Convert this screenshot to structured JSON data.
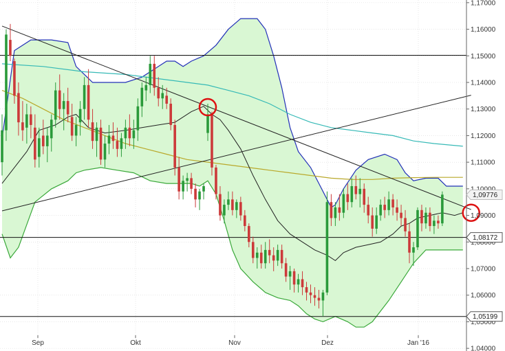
{
  "colors": {
    "background": "#ffffff",
    "band_fill": "#d9f7d3",
    "upper_band": "#2230b8",
    "lower_band": "#3aa83a",
    "middle_band": "#222222",
    "ma_cyan": "#35b9b6",
    "ma_olive": "#b9a82a",
    "candle_up": "#2a9a3a",
    "candle_down": "#cc3a3a",
    "trendline": "#222222",
    "horizontal_level": "#111111",
    "marker_circle": "#dd1111",
    "grid": "#d8d8d8"
  },
  "chart_data": {
    "type": "candlestick",
    "instrument_hint": "daily candlestick chart with Bollinger Bands",
    "x_ticks": [
      "Sep",
      "Okt",
      "Nov",
      "Dez",
      "Jan '16"
    ],
    "y_ticks": [
      "1,17000",
      "1,16000",
      "1,15000",
      "1,14000",
      "1,13000",
      "1,12000",
      "1,11000",
      "1,10000",
      "1,09000",
      "1,08000",
      "1,07000",
      "1,06000",
      "1,05000",
      "1,04000"
    ],
    "y_tick_values": [
      1.17,
      1.16,
      1.15,
      1.14,
      1.13,
      1.12,
      1.11,
      1.1,
      1.09,
      1.08,
      1.07,
      1.06,
      1.05,
      1.04
    ],
    "ylim": [
      1.039,
      1.171
    ],
    "grid": true,
    "price_tags": [
      {
        "label": "1,09776",
        "value": 1.09776,
        "style": "current"
      },
      {
        "label": "1,08172",
        "value": 1.08172,
        "style": "level"
      },
      {
        "label": "1,05199",
        "value": 1.05199,
        "style": "level"
      }
    ],
    "horizontal_levels": [
      1.1502,
      1.08172,
      1.05199
    ],
    "trendlines": [
      {
        "from": [
          0,
          1.1612
        ],
        "to": [
          114,
          1.0922
        ]
      },
      {
        "from": [
          0,
          1.0917
        ],
        "to": [
          114,
          1.1352
        ]
      }
    ],
    "markers": [
      {
        "x": 50,
        "y": 1.1307
      },
      {
        "x": 114,
        "y": 1.091
      }
    ],
    "candles": [
      [
        1.11,
        1.128,
        1.105,
        1.122
      ],
      [
        1.122,
        1.16,
        1.118,
        1.158
      ],
      [
        1.156,
        1.162,
        1.148,
        1.15
      ],
      [
        1.148,
        1.149,
        1.132,
        1.135
      ],
      [
        1.136,
        1.14,
        1.12,
        1.125
      ],
      [
        1.125,
        1.133,
        1.118,
        1.122
      ],
      [
        1.123,
        1.132,
        1.117,
        1.128
      ],
      [
        1.128,
        1.131,
        1.119,
        1.124
      ],
      [
        1.123,
        1.128,
        1.108,
        1.111
      ],
      [
        1.112,
        1.123,
        1.108,
        1.119
      ],
      [
        1.12,
        1.126,
        1.113,
        1.116
      ],
      [
        1.116,
        1.123,
        1.11,
        1.12
      ],
      [
        1.119,
        1.128,
        1.114,
        1.126
      ],
      [
        1.126,
        1.14,
        1.123,
        1.137
      ],
      [
        1.137,
        1.143,
        1.126,
        1.13
      ],
      [
        1.13,
        1.136,
        1.122,
        1.133
      ],
      [
        1.133,
        1.138,
        1.125,
        1.128
      ],
      [
        1.127,
        1.132,
        1.118,
        1.12
      ],
      [
        1.12,
        1.127,
        1.116,
        1.124
      ],
      [
        1.125,
        1.133,
        1.12,
        1.13
      ],
      [
        1.13,
        1.142,
        1.126,
        1.139
      ],
      [
        1.139,
        1.145,
        1.123,
        1.126
      ],
      [
        1.125,
        1.13,
        1.115,
        1.118
      ],
      [
        1.118,
        1.125,
        1.112,
        1.123
      ],
      [
        1.123,
        1.126,
        1.109,
        1.111
      ],
      [
        1.111,
        1.12,
        1.108,
        1.117
      ],
      [
        1.117,
        1.124,
        1.113,
        1.12
      ],
      [
        1.12,
        1.125,
        1.115,
        1.118
      ],
      [
        1.118,
        1.123,
        1.112,
        1.115
      ],
      [
        1.115,
        1.121,
        1.112,
        1.119
      ],
      [
        1.119,
        1.126,
        1.115,
        1.123
      ],
      [
        1.123,
        1.128,
        1.116,
        1.119
      ],
      [
        1.119,
        1.126,
        1.115,
        1.122
      ],
      [
        1.122,
        1.134,
        1.118,
        1.131
      ],
      [
        1.131,
        1.14,
        1.127,
        1.138
      ],
      [
        1.137,
        1.142,
        1.133,
        1.139
      ],
      [
        1.139,
        1.15,
        1.136,
        1.147
      ],
      [
        1.147,
        1.15,
        1.135,
        1.138
      ],
      [
        1.138,
        1.142,
        1.131,
        1.134
      ],
      [
        1.134,
        1.139,
        1.13,
        1.136
      ],
      [
        1.135,
        1.138,
        1.13,
        1.132
      ],
      [
        1.132,
        1.134,
        1.122,
        1.124
      ],
      [
        1.124,
        1.126,
        1.105,
        1.108
      ],
      [
        1.108,
        1.112,
        1.096,
        1.099
      ],
      [
        1.099,
        1.105,
        1.096,
        1.103
      ],
      [
        1.103,
        1.106,
        1.099,
        1.104
      ],
      [
        1.104,
        1.106,
        1.098,
        1.1
      ],
      [
        1.1,
        1.102,
        1.093,
        1.096
      ],
      [
        1.096,
        1.1,
        1.092,
        1.099
      ],
      [
        1.099,
        1.102,
        1.096,
        1.101
      ],
      [
        1.121,
        1.132,
        1.118,
        1.128
      ],
      [
        1.128,
        1.129,
        1.105,
        1.108
      ],
      [
        1.108,
        1.109,
        1.096,
        1.098
      ],
      [
        1.098,
        1.101,
        1.088,
        1.09
      ],
      [
        1.09,
        1.096,
        1.087,
        1.094
      ],
      [
        1.094,
        1.099,
        1.092,
        1.096
      ],
      [
        1.096,
        1.099,
        1.09,
        1.092
      ],
      [
        1.092,
        1.096,
        1.089,
        1.095
      ],
      [
        1.095,
        1.097,
        1.088,
        1.09
      ],
      [
        1.09,
        1.092,
        1.084,
        1.086
      ],
      [
        1.086,
        1.087,
        1.078,
        1.08
      ],
      [
        1.08,
        1.082,
        1.072,
        1.074
      ],
      [
        1.074,
        1.078,
        1.07,
        1.076
      ],
      [
        1.076,
        1.079,
        1.07,
        1.072
      ],
      [
        1.072,
        1.08,
        1.07,
        1.077
      ],
      [
        1.077,
        1.081,
        1.072,
        1.075
      ],
      [
        1.075,
        1.078,
        1.069,
        1.073
      ],
      [
        1.073,
        1.079,
        1.071,
        1.077
      ],
      [
        1.077,
        1.079,
        1.07,
        1.072
      ],
      [
        1.072,
        1.074,
        1.065,
        1.067
      ],
      [
        1.067,
        1.071,
        1.062,
        1.069
      ],
      [
        1.069,
        1.07,
        1.061,
        1.064
      ],
      [
        1.064,
        1.068,
        1.061,
        1.066
      ],
      [
        1.066,
        1.069,
        1.06,
        1.063
      ],
      [
        1.063,
        1.065,
        1.058,
        1.061
      ],
      [
        1.061,
        1.064,
        1.057,
        1.06
      ],
      [
        1.06,
        1.063,
        1.056,
        1.059
      ],
      [
        1.059,
        1.062,
        1.055,
        1.058
      ],
      [
        1.058,
        1.062,
        1.052,
        1.061
      ],
      [
        1.061,
        1.099,
        1.06,
        1.095
      ],
      [
        1.095,
        1.098,
        1.086,
        1.089
      ],
      [
        1.089,
        1.095,
        1.086,
        1.093
      ],
      [
        1.093,
        1.098,
        1.088,
        1.091
      ],
      [
        1.091,
        1.1,
        1.089,
        1.098
      ],
      [
        1.098,
        1.102,
        1.092,
        1.095
      ],
      [
        1.095,
        1.104,
        1.093,
        1.101
      ],
      [
        1.101,
        1.105,
        1.096,
        1.098
      ],
      [
        1.098,
        1.104,
        1.093,
        1.1
      ],
      [
        1.1,
        1.102,
        1.091,
        1.094
      ],
      [
        1.094,
        1.097,
        1.087,
        1.09
      ],
      [
        1.09,
        1.093,
        1.082,
        1.085
      ],
      [
        1.085,
        1.093,
        1.083,
        1.09
      ],
      [
        1.09,
        1.096,
        1.088,
        1.094
      ],
      [
        1.094,
        1.097,
        1.089,
        1.092
      ],
      [
        1.092,
        1.099,
        1.09,
        1.096
      ],
      [
        1.096,
        1.098,
        1.09,
        1.093
      ],
      [
        1.093,
        1.096,
        1.088,
        1.091
      ],
      [
        1.091,
        1.094,
        1.086,
        1.089
      ],
      [
        1.089,
        1.092,
        1.082,
        1.084
      ],
      [
        1.084,
        1.087,
        1.072,
        1.076
      ],
      [
        1.076,
        1.08,
        1.071,
        1.078
      ],
      [
        1.078,
        1.093,
        1.077,
        1.092
      ],
      [
        1.092,
        1.094,
        1.084,
        1.087
      ],
      [
        1.087,
        1.093,
        1.085,
        1.091
      ],
      [
        1.091,
        1.093,
        1.084,
        1.086
      ],
      [
        1.086,
        1.09,
        1.083,
        1.088
      ],
      [
        1.088,
        1.09,
        1.085,
        1.087
      ],
      [
        1.087,
        1.099,
        1.086,
        1.0978
      ]
    ],
    "upper_band": [
      [
        0,
        1.119
      ],
      [
        3,
        1.152
      ],
      [
        7,
        1.156
      ],
      [
        12,
        1.156
      ],
      [
        16,
        1.155
      ],
      [
        18,
        1.146
      ],
      [
        22,
        1.14
      ],
      [
        30,
        1.14
      ],
      [
        34,
        1.142
      ],
      [
        38,
        1.146
      ],
      [
        40,
        1.148
      ],
      [
        42,
        1.148
      ],
      [
        44,
        1.146
      ],
      [
        46,
        1.148
      ],
      [
        49,
        1.15
      ],
      [
        52,
        1.154
      ],
      [
        55,
        1.16
      ],
      [
        58,
        1.164
      ],
      [
        62,
        1.164
      ],
      [
        64,
        1.16
      ],
      [
        66,
        1.15
      ],
      [
        68,
        1.138
      ],
      [
        70,
        1.123
      ],
      [
        72,
        1.114
      ],
      [
        75,
        1.108
      ],
      [
        77,
        1.102
      ],
      [
        79,
        1.096
      ],
      [
        80,
        1.093
      ],
      [
        81,
        1.094
      ],
      [
        83,
        1.1
      ],
      [
        86,
        1.107
      ],
      [
        89,
        1.111
      ],
      [
        93,
        1.113
      ],
      [
        96,
        1.111
      ],
      [
        98,
        1.106
      ],
      [
        100,
        1.103
      ],
      [
        103,
        1.104
      ],
      [
        106,
        1.104
      ],
      [
        108,
        1.101
      ],
      [
        112,
        1.101
      ]
    ],
    "lower_band": [
      [
        0,
        1.083
      ],
      [
        2,
        1.074
      ],
      [
        4,
        1.078
      ],
      [
        8,
        1.095
      ],
      [
        12,
        1.1
      ],
      [
        16,
        1.103
      ],
      [
        18,
        1.106
      ],
      [
        20,
        1.107
      ],
      [
        24,
        1.108
      ],
      [
        28,
        1.107
      ],
      [
        32,
        1.106
      ],
      [
        36,
        1.103
      ],
      [
        40,
        1.102
      ],
      [
        44,
        1.102
      ],
      [
        46,
        1.102
      ],
      [
        48,
        1.101
      ],
      [
        50,
        1.103
      ],
      [
        52,
        1.098
      ],
      [
        54,
        1.088
      ],
      [
        56,
        1.077
      ],
      [
        58,
        1.07
      ],
      [
        61,
        1.065
      ],
      [
        64,
        1.061
      ],
      [
        67,
        1.059
      ],
      [
        70,
        1.058
      ],
      [
        72,
        1.056
      ],
      [
        74,
        1.053
      ],
      [
        76,
        1.051
      ],
      [
        78,
        1.05
      ],
      [
        81,
        1.052
      ],
      [
        84,
        1.05
      ],
      [
        86,
        1.048
      ],
      [
        88,
        1.048
      ],
      [
        90,
        1.05
      ],
      [
        94,
        1.058
      ],
      [
        97,
        1.065
      ],
      [
        100,
        1.072
      ],
      [
        103,
        1.077
      ],
      [
        106,
        1.077
      ],
      [
        112,
        1.077
      ]
    ],
    "middle_band": [
      [
        0,
        1.102
      ],
      [
        3,
        1.108
      ],
      [
        6,
        1.114
      ],
      [
        9,
        1.122
      ],
      [
        13,
        1.124
      ],
      [
        16,
        1.127
      ],
      [
        18,
        1.128
      ],
      [
        21,
        1.123
      ],
      [
        25,
        1.121
      ],
      [
        30,
        1.122
      ],
      [
        34,
        1.123
      ],
      [
        38,
        1.124
      ],
      [
        42,
        1.125
      ],
      [
        46,
        1.129
      ],
      [
        49,
        1.131
      ],
      [
        51,
        1.128
      ],
      [
        53,
        1.126
      ],
      [
        55,
        1.122
      ],
      [
        58,
        1.115
      ],
      [
        61,
        1.105
      ],
      [
        64,
        1.096
      ],
      [
        67,
        1.088
      ],
      [
        70,
        1.083
      ],
      [
        73,
        1.08
      ],
      [
        76,
        1.077
      ],
      [
        79,
        1.075
      ],
      [
        81,
        1.073
      ],
      [
        83,
        1.076
      ],
      [
        86,
        1.078
      ],
      [
        89,
        1.079
      ],
      [
        92,
        1.08
      ],
      [
        95,
        1.083
      ],
      [
        97,
        1.086
      ],
      [
        99,
        1.087
      ],
      [
        101,
        1.089
      ],
      [
        104,
        1.09
      ],
      [
        107,
        1.091
      ],
      [
        110,
        1.09
      ],
      [
        112,
        1.091
      ]
    ],
    "ma_cyan": [
      [
        0,
        1.147
      ],
      [
        10,
        1.146
      ],
      [
        20,
        1.144
      ],
      [
        30,
        1.143
      ],
      [
        40,
        1.141
      ],
      [
        45,
        1.14
      ],
      [
        50,
        1.139
      ],
      [
        55,
        1.137
      ],
      [
        60,
        1.135
      ],
      [
        65,
        1.132
      ],
      [
        70,
        1.128
      ],
      [
        75,
        1.125
      ],
      [
        80,
        1.123
      ],
      [
        85,
        1.122
      ],
      [
        90,
        1.121
      ],
      [
        95,
        1.12
      ],
      [
        100,
        1.118
      ],
      [
        105,
        1.117
      ],
      [
        112,
        1.116
      ]
    ],
    "ma_olive": [
      [
        0,
        1.137
      ],
      [
        5,
        1.134
      ],
      [
        10,
        1.13
      ],
      [
        15,
        1.126
      ],
      [
        20,
        1.123
      ],
      [
        25,
        1.12
      ],
      [
        30,
        1.117
      ],
      [
        35,
        1.115
      ],
      [
        40,
        1.113
      ],
      [
        45,
        1.111
      ],
      [
        50,
        1.11
      ],
      [
        55,
        1.109
      ],
      [
        60,
        1.108
      ],
      [
        65,
        1.107
      ],
      [
        70,
        1.106
      ],
      [
        75,
        1.105
      ],
      [
        80,
        1.104
      ],
      [
        85,
        1.1035
      ],
      [
        90,
        1.1035
      ],
      [
        95,
        1.104
      ],
      [
        100,
        1.1042
      ],
      [
        105,
        1.1043
      ],
      [
        112,
        1.1043
      ]
    ]
  }
}
